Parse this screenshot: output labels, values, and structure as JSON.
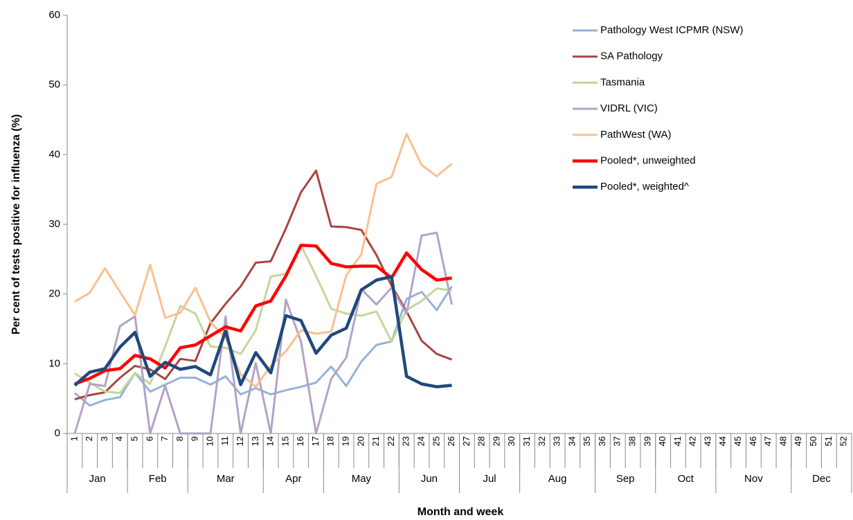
{
  "chart_data": {
    "type": "line",
    "y_label": "Per cent of tests positive for influenza (%)",
    "x_label": "Month and week",
    "categories": [
      "1",
      "2",
      "3",
      "4",
      "5",
      "6",
      "7",
      "8",
      "9",
      "10",
      "11",
      "12",
      "13",
      "14",
      "15",
      "16",
      "17",
      "18",
      "19",
      "20",
      "21",
      "22",
      "23",
      "24",
      "25",
      "26",
      "27",
      "28",
      "29",
      "30",
      "31",
      "32",
      "33",
      "34",
      "35",
      "36",
      "37",
      "38",
      "39",
      "40",
      "41",
      "42",
      "43",
      "44",
      "45",
      "46",
      "47",
      "48",
      "49",
      "50",
      "51",
      "52"
    ],
    "x_groups": [
      {
        "label": "Jan",
        "span": 4
      },
      {
        "label": "Feb",
        "span": 4
      },
      {
        "label": "Mar",
        "span": 5
      },
      {
        "label": "Apr",
        "span": 4
      },
      {
        "label": "May",
        "span": 5
      },
      {
        "label": "Jun",
        "span": 4
      },
      {
        "label": "Jul",
        "span": 4
      },
      {
        "label": "Aug",
        "span": 5
      },
      {
        "label": "Sep",
        "span": 4
      },
      {
        "label": "Oct",
        "span": 4
      },
      {
        "label": "Nov",
        "span": 5
      },
      {
        "label": "Dec",
        "span": 4
      }
    ],
    "ylim": [
      0,
      60
    ],
    "yticks": [
      0,
      10,
      20,
      30,
      40,
      50,
      60
    ],
    "grid": false,
    "legend": "top-right",
    "series": [
      {
        "name": "Pathology West ICPMR (NSW)",
        "color": "#95b3d7",
        "width": 3,
        "values": [
          5.8,
          4.0,
          4.8,
          5.2,
          8.7,
          6.0,
          7.0,
          8.0,
          8.0,
          7.0,
          8.2,
          5.6,
          6.5,
          5.6,
          6.2,
          6.7,
          7.3,
          9.6,
          6.8,
          10.3,
          12.7,
          13.2,
          19.3,
          20.3,
          17.7,
          21.1,
          null,
          null,
          null,
          null,
          null,
          null,
          null,
          null,
          null,
          null,
          null,
          null,
          null,
          null,
          null,
          null,
          null,
          null,
          null,
          null,
          null,
          null,
          null,
          null,
          null,
          null
        ]
      },
      {
        "name": "SA Pathology",
        "color": "#a9443f",
        "width": 3,
        "values": [
          4.9,
          5.5,
          5.9,
          8.0,
          9.7,
          9.2,
          7.8,
          10.7,
          10.4,
          15.8,
          18.6,
          21.1,
          24.5,
          24.7,
          29.4,
          34.6,
          37.7,
          29.7,
          29.6,
          29.2,
          25.6,
          21.2,
          17.5,
          13.3,
          11.4,
          10.6,
          null,
          null,
          null,
          null,
          null,
          null,
          null,
          null,
          null,
          null,
          null,
          null,
          null,
          null,
          null,
          null,
          null,
          null,
          null,
          null,
          null,
          null,
          null,
          null,
          null,
          null
        ]
      },
      {
        "name": "Tasmania",
        "color": "#c3d69b",
        "width": 3,
        "values": [
          8.6,
          7.3,
          6.0,
          5.8,
          8.7,
          7.1,
          12.5,
          18.3,
          17.2,
          12.5,
          12.3,
          11.4,
          14.8,
          22.5,
          22.9,
          27.0,
          22.6,
          17.9,
          17.2,
          16.9,
          17.5,
          13.2,
          17.7,
          19.0,
          20.8,
          20.5,
          null,
          null,
          null,
          null,
          null,
          null,
          null,
          null,
          null,
          null,
          null,
          null,
          null,
          null,
          null,
          null,
          null,
          null,
          null,
          null,
          null,
          null,
          null,
          null,
          null,
          null
        ]
      },
      {
        "name": "VIDRL (VIC)",
        "color": "#b3a2c7",
        "width": 3,
        "values": [
          0,
          7.1,
          6.8,
          15.4,
          16.8,
          0,
          6.8,
          0,
          0,
          0,
          16.8,
          0,
          10.1,
          0,
          19.2,
          13.2,
          0,
          7.8,
          10.9,
          20.7,
          18.5,
          20.9,
          17.2,
          28.4,
          28.8,
          18.5,
          null,
          null,
          null,
          null,
          null,
          null,
          null,
          null,
          null,
          null,
          null,
          null,
          null,
          null,
          null,
          null,
          null,
          null,
          null,
          null,
          null,
          null,
          null,
          null,
          null,
          null
        ]
      },
      {
        "name": "PathWest (WA)",
        "color": "#fac090",
        "width": 3,
        "values": [
          18.9,
          20.2,
          23.7,
          20.3,
          17.0,
          24.2,
          16.6,
          17.3,
          20.9,
          16.0,
          13.7,
          8.5,
          6.7,
          9.7,
          11.8,
          14.8,
          14.3,
          14.6,
          22.7,
          25.7,
          35.8,
          36.8,
          43.0,
          38.5,
          36.9,
          38.7,
          null,
          null,
          null,
          null,
          null,
          null,
          null,
          null,
          null,
          null,
          null,
          null,
          null,
          null,
          null,
          null,
          null,
          null,
          null,
          null,
          null,
          null,
          null,
          null,
          null,
          null
        ]
      },
      {
        "name": "Pooled*, unweighted",
        "color": "#ff0000",
        "width": 4.5,
        "values": [
          7.1,
          7.9,
          9.0,
          9.3,
          11.2,
          10.7,
          9.4,
          12.3,
          12.7,
          14.0,
          15.3,
          14.7,
          18.3,
          19.0,
          22.6,
          27.0,
          26.9,
          24.4,
          23.9,
          24.0,
          24.0,
          22.3,
          25.9,
          23.5,
          22.0,
          22.3,
          null,
          null,
          null,
          null,
          null,
          null,
          null,
          null,
          null,
          null,
          null,
          null,
          null,
          null,
          null,
          null,
          null,
          null,
          null,
          null,
          null,
          null,
          null,
          null,
          null,
          null
        ]
      },
      {
        "name": "Pooled*, weighted^",
        "color": "#1f497d",
        "width": 4.5,
        "values": [
          6.9,
          8.8,
          9.3,
          12.4,
          14.5,
          8.2,
          10.2,
          9.2,
          9.6,
          8.4,
          14.7,
          7.0,
          11.6,
          8.7,
          16.9,
          16.2,
          11.5,
          14.1,
          15.1,
          20.6,
          22.0,
          22.5,
          8.2,
          7.1,
          6.7,
          6.9,
          null,
          null,
          null,
          null,
          null,
          null,
          null,
          null,
          null,
          null,
          null,
          null,
          null,
          null,
          null,
          null,
          null,
          null,
          null,
          null,
          null,
          null,
          null,
          null,
          null,
          null
        ]
      }
    ]
  }
}
